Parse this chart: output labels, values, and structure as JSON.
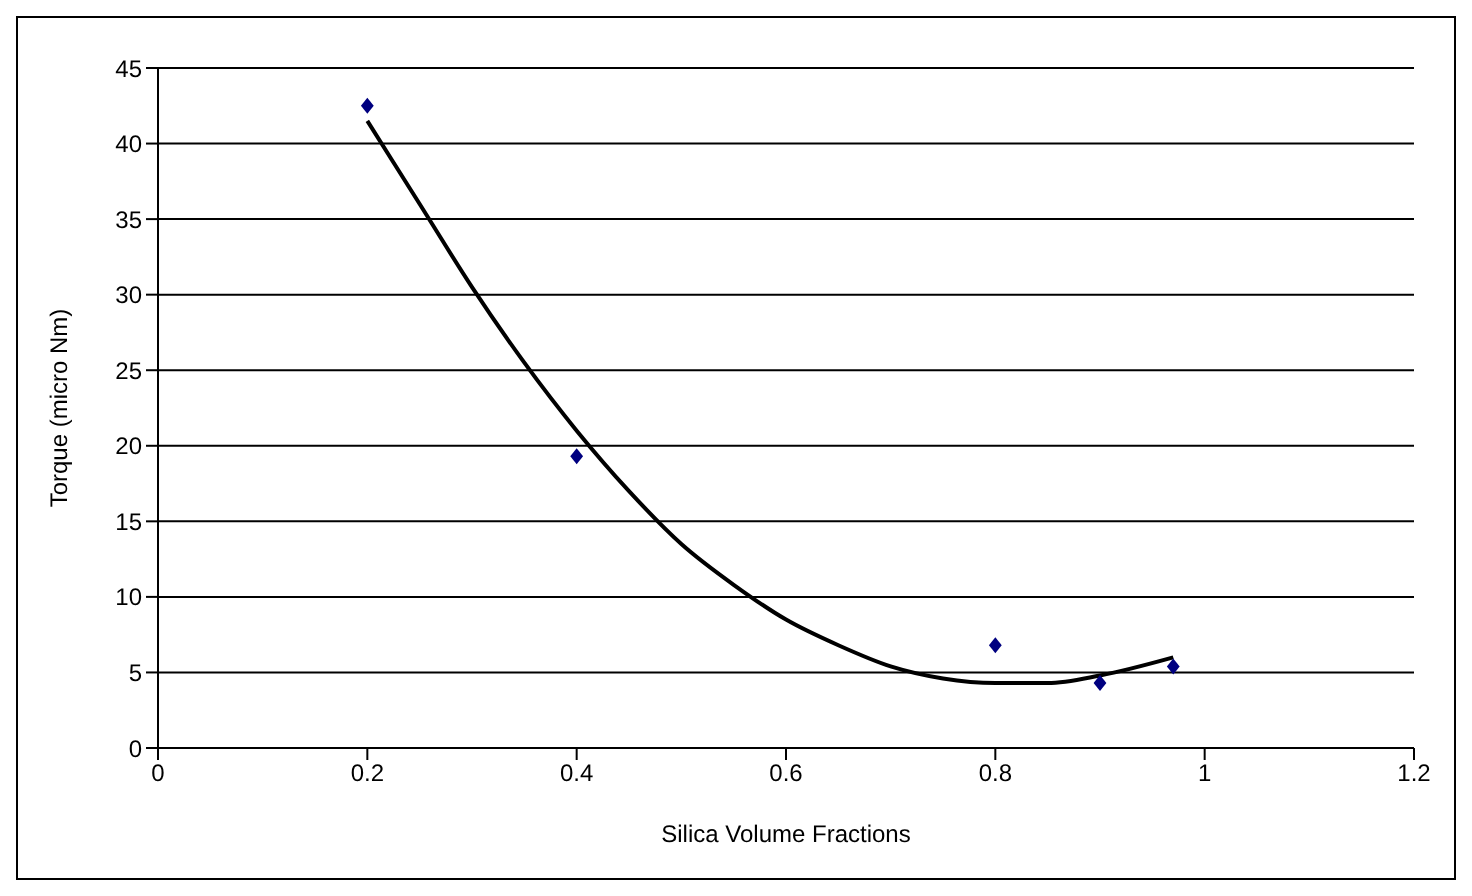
{
  "chart_data": {
    "type": "scatter",
    "xlabel": "Silica Volume Fractions",
    "ylabel": "Torque (micro Nm)",
    "xlim": [
      0,
      1.2
    ],
    "xticks": [
      0,
      0.2,
      0.4,
      0.6,
      0.8,
      1,
      1.2
    ],
    "ylim": [
      0,
      45
    ],
    "yticks": [
      0,
      5,
      10,
      15,
      20,
      25,
      30,
      35,
      40,
      45
    ],
    "grid": "y",
    "legend": false,
    "series": [
      {
        "color": "#000080",
        "marker": "diamond",
        "x": [
          0.2,
          0.4,
          0.8,
          0.9,
          0.97
        ],
        "values": [
          42.5,
          19.3,
          6.8,
          4.3,
          5.4
        ]
      },
      {
        "type": "line",
        "color": "#000000",
        "marker": "none",
        "x": [
          0.2,
          0.25,
          0.3,
          0.35,
          0.4,
          0.45,
          0.5,
          0.55,
          0.6,
          0.65,
          0.7,
          0.75,
          0.8,
          0.85,
          0.9,
          0.97
        ],
        "values": [
          41.5,
          36,
          30.5,
          25.5,
          21,
          17,
          13.5,
          10.8,
          8.5,
          6.8,
          5.4,
          4.6,
          4.3,
          4.3,
          4.8,
          6
        ]
      }
    ]
  }
}
